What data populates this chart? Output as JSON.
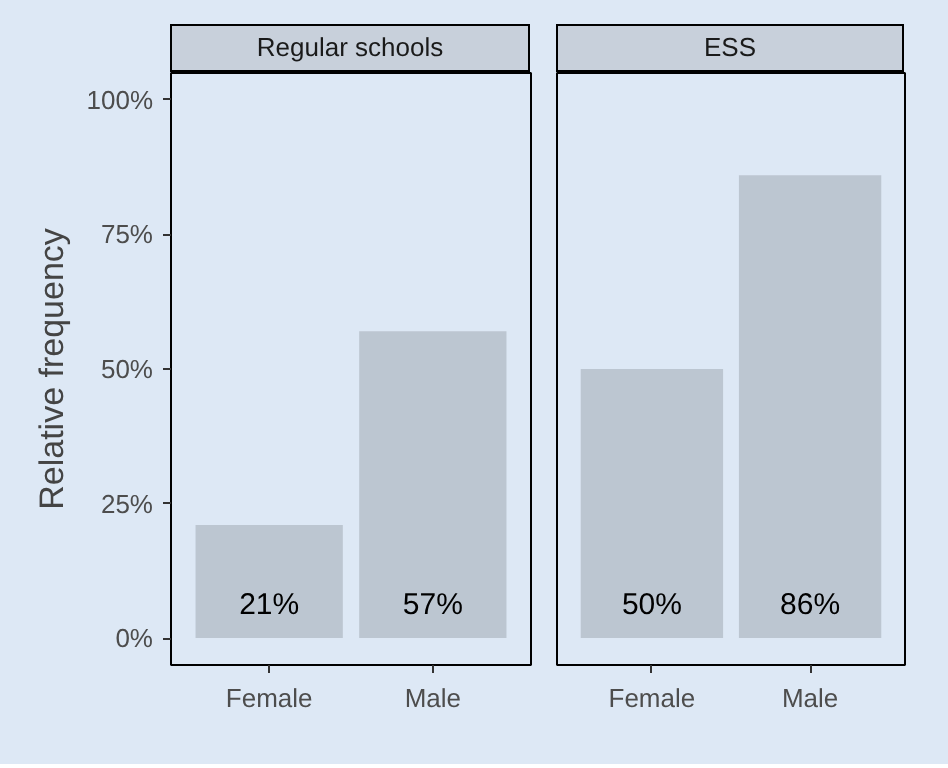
{
  "chart_data": [
    {
      "type": "bar",
      "title": "Regular schools",
      "ylabel": "Relative frequency",
      "categories": [
        "Female",
        "Male"
      ],
      "values": [
        21,
        57
      ],
      "value_labels": [
        "21%",
        "57%"
      ],
      "color": "#bcc6d1",
      "ylim": [
        -5,
        105
      ],
      "yticks": [
        {
          "value": 0,
          "label": "0%"
        },
        {
          "value": 25,
          "label": "25%"
        },
        {
          "value": 50,
          "label": "50%"
        },
        {
          "value": 75,
          "label": "75%"
        },
        {
          "value": 100,
          "label": "100%"
        }
      ],
      "grid": false
    },
    {
      "type": "bar",
      "title": "ESS",
      "categories": [
        "Female",
        "Male"
      ],
      "values": [
        50,
        86
      ],
      "value_labels": [
        "50%",
        "86%"
      ],
      "color": "#bcc6d1",
      "ylim": [
        -5,
        105
      ],
      "grid": false,
      "tick_labels": "x"
    }
  ]
}
